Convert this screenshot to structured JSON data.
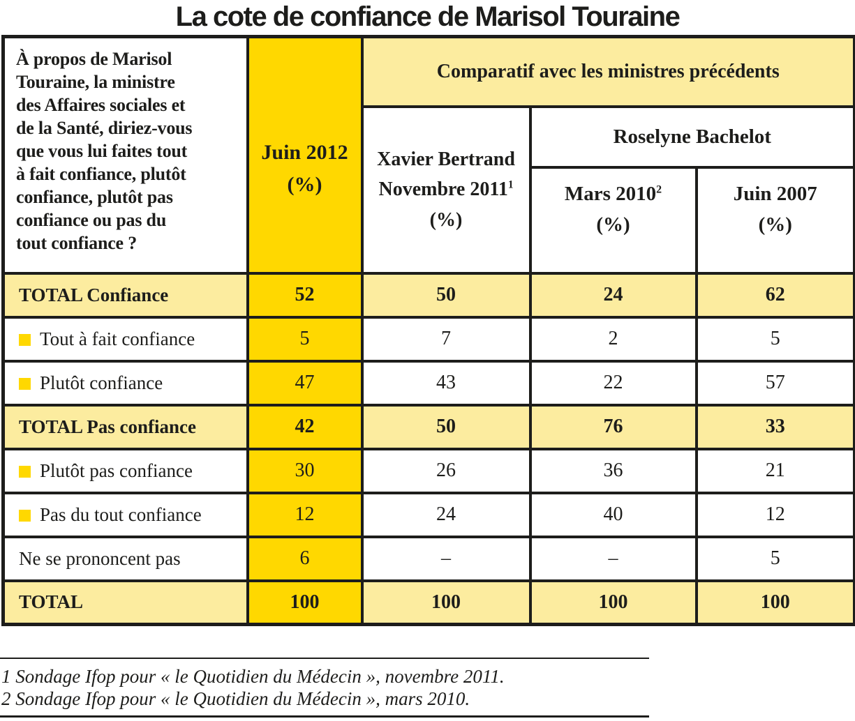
{
  "title": "La cote de confiance de Marisol Touraine",
  "colors": {
    "accent_yellow": "#FFD800",
    "cream": "#FCEC9F",
    "border_black": "#1D1D1B",
    "text_black": "#1D1D1B"
  },
  "header": {
    "question": "À propos de Marisol\nTouraine, la ministre\ndes Affaires sociales et\nde la Santé, diriez-vous\nque vous lui faites tout\nà fait confiance, plutôt\nconfiance, plutôt pas\nconfiance ou pas du\ntout confiance ?",
    "juin2012": {
      "line1": "Juin 2012",
      "line2": "(%)"
    },
    "comparatif": "Comparatif avec les ministres précédents",
    "xavier": {
      "line1": "Xavier Bertrand",
      "line2": "Novembre 2011",
      "sup": "1",
      "line3": "(%)"
    },
    "roselyne": "Roselyne Bachelot",
    "mars": {
      "line1": "Mars 2010",
      "sup": "2",
      "line2": "(%)"
    },
    "juin2007": {
      "line1": "Juin 2007",
      "line2": "(%)"
    }
  },
  "rows": [
    {
      "label": "TOTAL Confiance",
      "bold": true,
      "bullet": false,
      "shaded": true,
      "values": [
        "52",
        "50",
        "24",
        "62"
      ]
    },
    {
      "label": "Tout à fait confiance",
      "bold": false,
      "bullet": true,
      "shaded": false,
      "values": [
        "5",
        "7",
        "2",
        "5"
      ]
    },
    {
      "label": "Plutôt confiance",
      "bold": false,
      "bullet": true,
      "shaded": false,
      "values": [
        "47",
        "43",
        "22",
        "57"
      ]
    },
    {
      "label": "TOTAL Pas confiance",
      "bold": true,
      "bullet": false,
      "shaded": true,
      "values": [
        "42",
        "50",
        "76",
        "33"
      ]
    },
    {
      "label": "Plutôt pas confiance",
      "bold": false,
      "bullet": true,
      "shaded": false,
      "values": [
        "30",
        "26",
        "36",
        "21"
      ]
    },
    {
      "label": "Pas du tout confiance",
      "bold": false,
      "bullet": true,
      "shaded": false,
      "values": [
        "12",
        "24",
        "40",
        "12"
      ]
    },
    {
      "label": "Ne se prononcent pas",
      "bold": false,
      "bullet": false,
      "shaded": false,
      "values": [
        "6",
        "–",
        "–",
        "5"
      ]
    },
    {
      "label": "TOTAL",
      "bold": true,
      "bullet": false,
      "shaded": true,
      "values": [
        "100",
        "100",
        "100",
        "100"
      ]
    }
  ],
  "footnotes": [
    "1 Sondage Ifop pour « le Quotidien du Médecin », novembre 2011.",
    "2 Sondage Ifop pour « le Quotidien du Médecin », mars 2010."
  ],
  "chart_data": {
    "type": "table",
    "title": "La cote de confiance de Marisol Touraine",
    "columns": [
      "Juin 2012 (%)",
      "Xavier Bertrand Novembre 2011 (%)",
      "Roselyne Bachelot Mars 2010 (%)",
      "Roselyne Bachelot Juin 2007 (%)"
    ],
    "rows": [
      {
        "label": "TOTAL Confiance",
        "values": [
          52,
          50,
          24,
          62
        ]
      },
      {
        "label": "Tout à fait confiance",
        "values": [
          5,
          7,
          2,
          5
        ]
      },
      {
        "label": "Plutôt confiance",
        "values": [
          47,
          43,
          22,
          57
        ]
      },
      {
        "label": "TOTAL Pas confiance",
        "values": [
          42,
          50,
          76,
          33
        ]
      },
      {
        "label": "Plutôt pas confiance",
        "values": [
          30,
          26,
          36,
          21
        ]
      },
      {
        "label": "Pas du tout confiance",
        "values": [
          12,
          24,
          40,
          12
        ]
      },
      {
        "label": "Ne se prononcent pas",
        "values": [
          6,
          null,
          null,
          5
        ]
      },
      {
        "label": "TOTAL",
        "values": [
          100,
          100,
          100,
          100
        ]
      }
    ]
  }
}
